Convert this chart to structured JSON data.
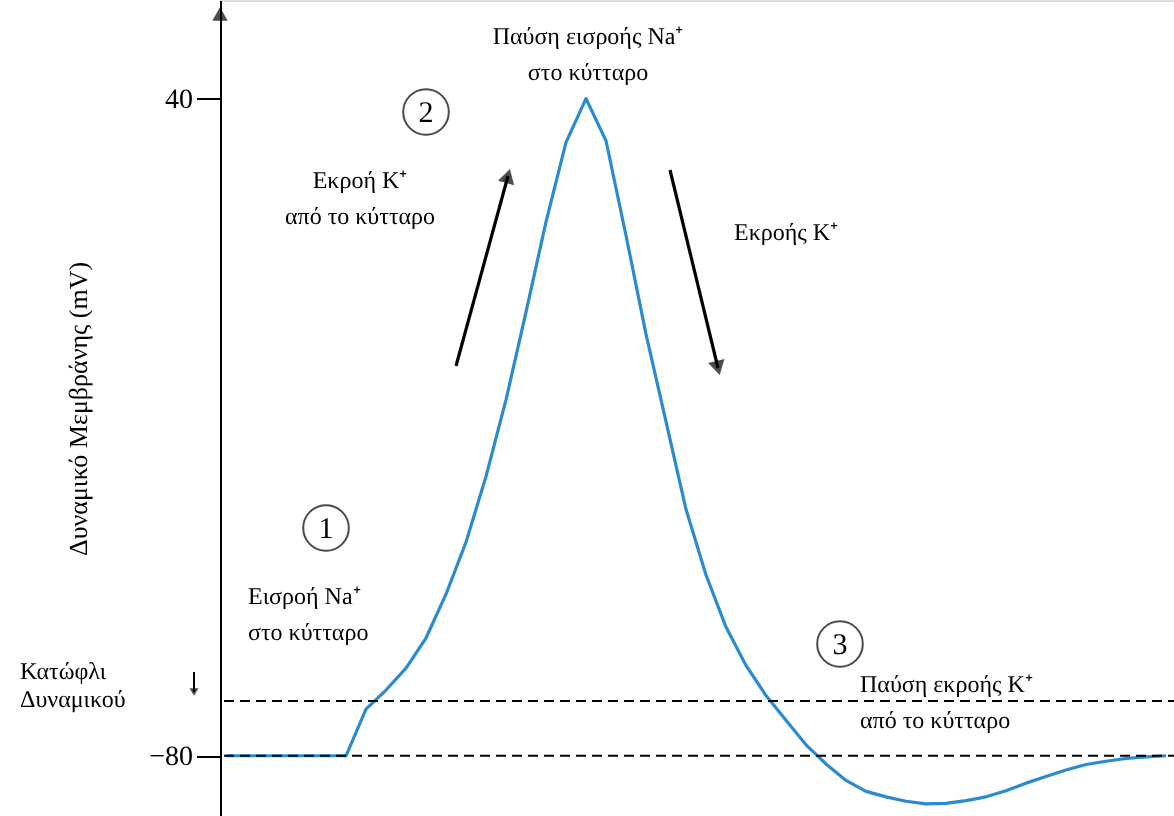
{
  "chart_data": {
    "type": "line",
    "ylabel": "Δυναμικό Μεμβράνης (mV)",
    "categories": [
      null,
      null,
      null,
      null,
      null,
      null,
      null,
      null,
      null,
      null,
      null,
      null,
      null,
      null,
      null,
      null,
      null,
      null,
      null,
      null,
      null,
      null,
      null,
      null,
      null,
      null,
      null,
      null,
      null,
      null,
      null,
      null,
      null,
      null,
      null,
      null,
      null,
      null,
      null,
      null,
      null,
      null,
      null,
      null,
      null,
      null,
      null,
      null
    ],
    "series": [
      {
        "color": "#2a8bd0",
        "values": [
          -80,
          -80,
          -80,
          -80,
          -80,
          -80,
          -80,
          -71.5,
          -68,
          -64,
          -58.5,
          -50.5,
          -41,
          -29,
          -15,
          1,
          17.5,
          32,
          40,
          32.3,
          15,
          -3,
          -19,
          -35,
          -47,
          -56.5,
          -63.5,
          -69,
          -73.5,
          -78,
          -81.5,
          -84.5,
          -86.5,
          -87.5,
          -88.3,
          -88.8,
          -88.7,
          -88.2,
          -87.5,
          -86.4,
          -85,
          -83.8,
          -82.6,
          -81.6,
          -81,
          -80.5,
          -80.2,
          -80
        ]
      }
    ],
    "ylim": [
      -91,
      58
    ],
    "yticks": [
      -80,
      40
    ],
    "grid": false,
    "tick_labels": "y",
    "marker": "none",
    "line_style": "solid",
    "ref_lines": [
      {
        "axis": "y",
        "value": -70,
        "label": "Κατώφλι\nΔυναμικού",
        "line_style": "dashed",
        "color": "#000000"
      },
      {
        "axis": "y",
        "value": -80,
        "line_style": "dashed",
        "color": "#000000"
      }
    ],
    "annotations": [
      "Παύση εισροής Na⁺\nστο κύτταρο",
      "Εκροή K⁺\nαπό το κύτταρο",
      "Εκροής K⁺",
      "Εισροή Na⁺\nστο κύτταρο",
      "Παύση εκροής K⁺\nαπό το κύτταρο",
      "1",
      "2",
      "3"
    ]
  }
}
